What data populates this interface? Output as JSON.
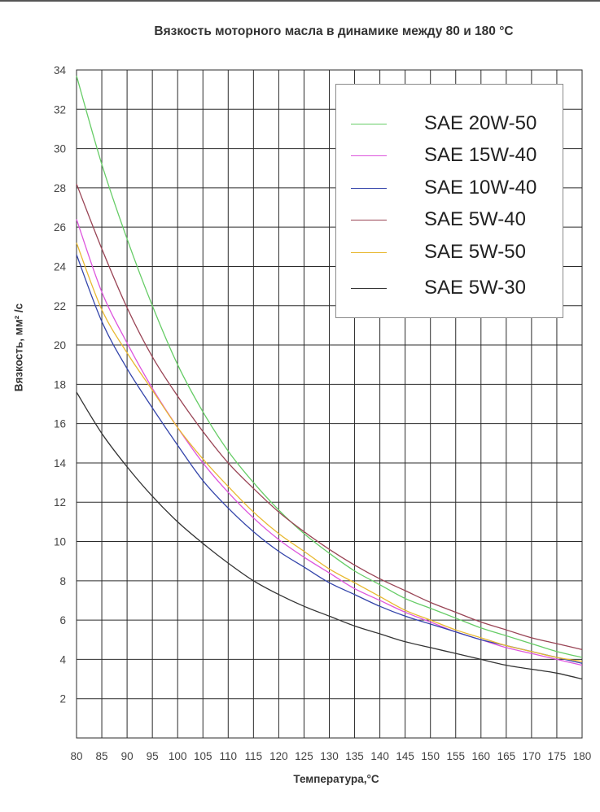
{
  "chart_data": {
    "type": "line",
    "title": "Вязкость моторного масла в динамике между 80 и 180 °С",
    "xlabel": "Температура,°С",
    "ylabel": "Вязкость,  мм² /с",
    "xlim": [
      80,
      180
    ],
    "ylim": [
      0,
      34
    ],
    "x_ticks": [
      "80",
      "85",
      "90",
      "95",
      "100",
      "105",
      "110",
      "115",
      "120",
      "125",
      "130",
      "135",
      "140",
      "145",
      "150",
      "155",
      "160",
      "165",
      "170",
      "175",
      "180"
    ],
    "y_ticks": [
      "2",
      "4",
      "6",
      "8",
      "10",
      "12",
      "14",
      "16",
      "18",
      "20",
      "22",
      "24",
      "26",
      "28",
      "30",
      "32",
      "34"
    ],
    "grid": true,
    "legend_position": "top-right",
    "x": [
      80,
      85,
      90,
      95,
      100,
      105,
      110,
      115,
      120,
      125,
      130,
      135,
      140,
      145,
      150,
      155,
      160,
      165,
      170,
      175,
      180
    ],
    "series": [
      {
        "name": "SAE 20W-50",
        "color": "#66cc66",
        "values": [
          33.7,
          29.2,
          25.4,
          22.0,
          19.0,
          16.6,
          14.6,
          13.0,
          11.6,
          10.4,
          9.4,
          8.5,
          7.8,
          7.1,
          6.6,
          6.1,
          5.6,
          5.2,
          4.8,
          4.4,
          4.1
        ]
      },
      {
        "name": "SAE 15W-40",
        "color": "#dd55dd",
        "values": [
          26.4,
          22.7,
          20.1,
          17.8,
          15.8,
          14.0,
          12.5,
          11.2,
          10.1,
          9.2,
          8.4,
          7.6,
          7.0,
          6.4,
          5.9,
          5.4,
          5.0,
          4.6,
          4.3,
          4.0,
          3.7
        ]
      },
      {
        "name": "SAE 10W-40",
        "color": "#3344aa",
        "values": [
          24.6,
          21.2,
          18.8,
          16.8,
          14.9,
          13.1,
          11.7,
          10.5,
          9.5,
          8.7,
          7.9,
          7.3,
          6.7,
          6.2,
          5.8,
          5.4,
          5.0,
          4.7,
          4.4,
          4.1,
          3.8
        ]
      },
      {
        "name": "SAE 5W-40",
        "color": "#994455",
        "values": [
          28.2,
          24.9,
          21.9,
          19.4,
          17.4,
          15.6,
          14.0,
          12.7,
          11.5,
          10.5,
          9.6,
          8.8,
          8.1,
          7.5,
          6.9,
          6.4,
          5.9,
          5.5,
          5.1,
          4.8,
          4.5
        ]
      },
      {
        "name": "SAE 5W-50",
        "color": "#e8b830",
        "values": [
          25.2,
          21.8,
          19.6,
          17.7,
          15.8,
          14.2,
          12.8,
          11.5,
          10.4,
          9.5,
          8.6,
          7.9,
          7.2,
          6.5,
          6.0,
          5.5,
          5.1,
          4.7,
          4.4,
          4.1,
          3.9
        ]
      },
      {
        "name": "SAE 5W-30",
        "color": "#333333",
        "values": [
          17.6,
          15.5,
          13.8,
          12.3,
          11.0,
          9.9,
          8.9,
          8.0,
          7.3,
          6.7,
          6.2,
          5.7,
          5.3,
          4.9,
          4.6,
          4.3,
          4.0,
          3.7,
          3.5,
          3.3,
          3.0
        ]
      }
    ]
  }
}
